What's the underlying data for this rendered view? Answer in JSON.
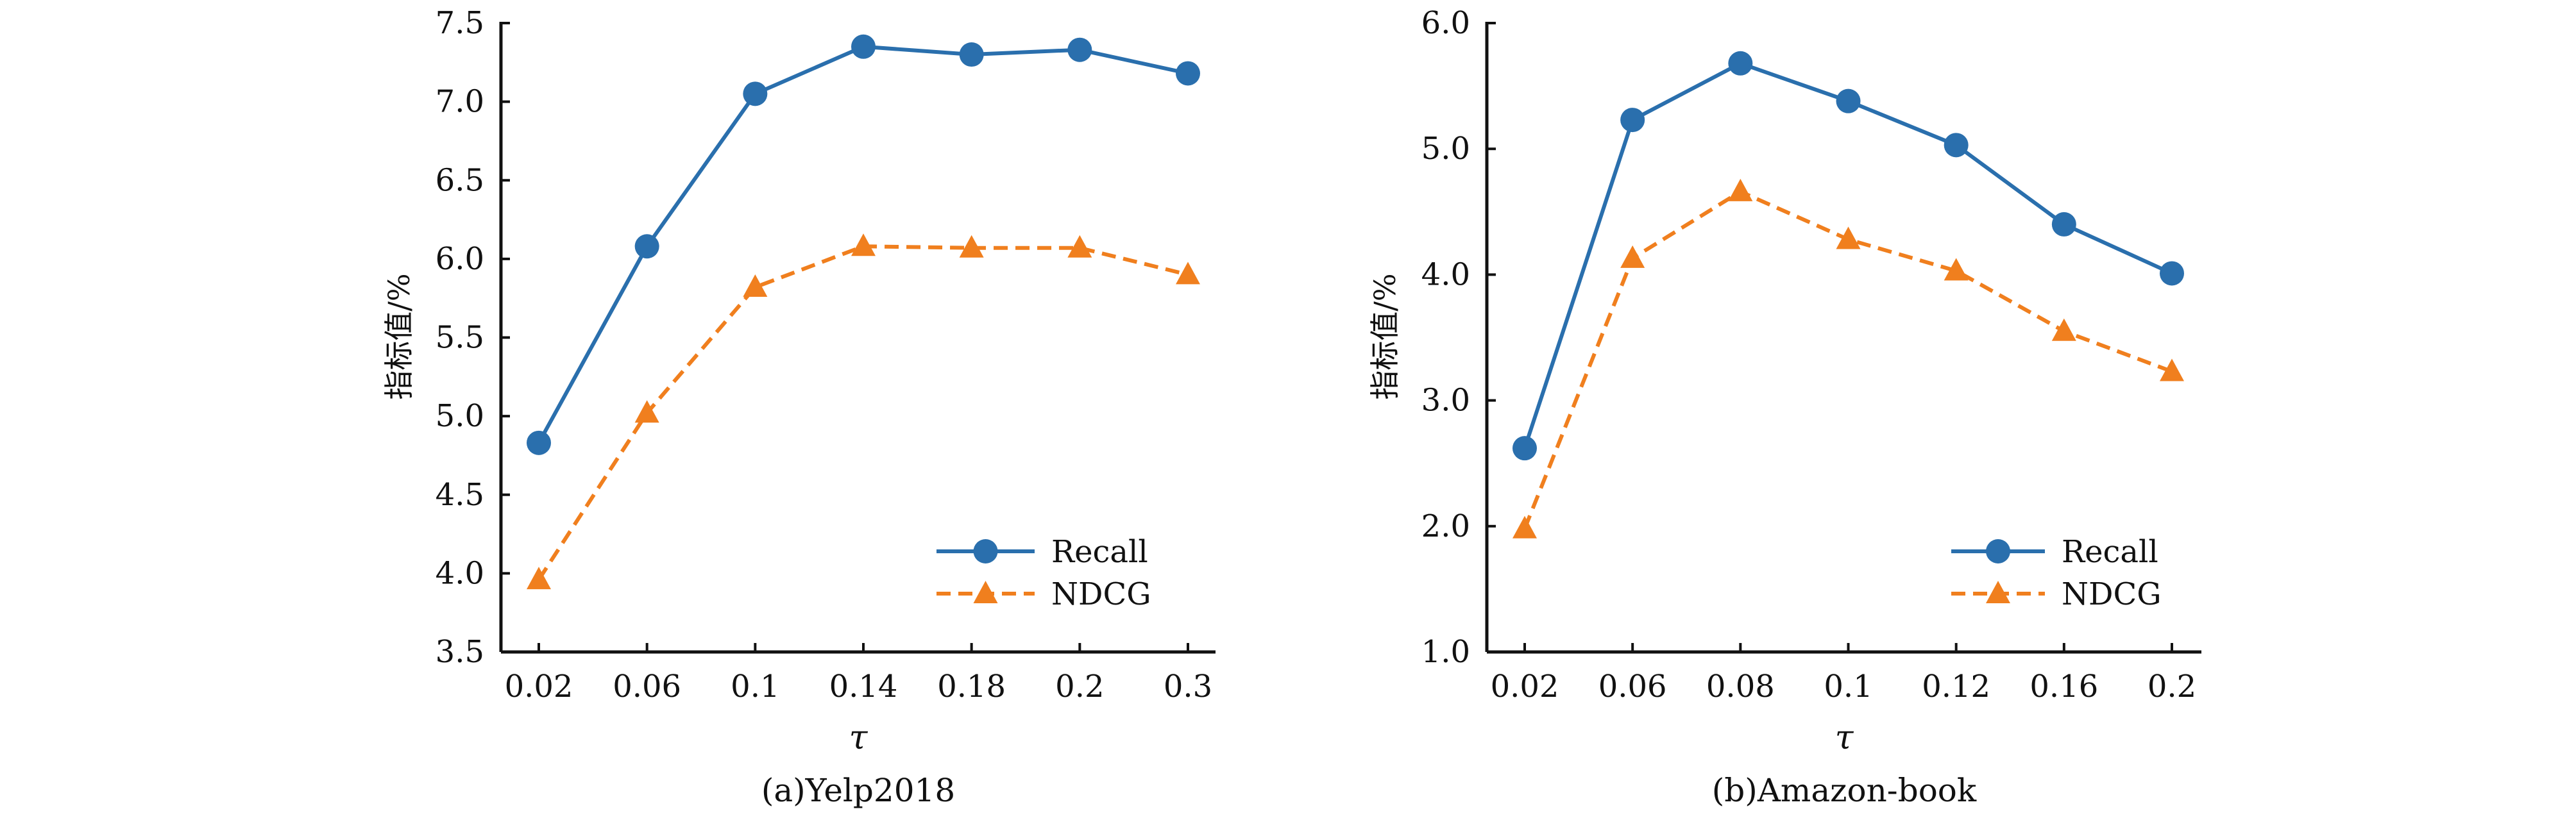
{
  "colors": {
    "recall": "#2a6fad",
    "ndcg": "#f07f1e",
    "axis": "#111111"
  },
  "chart_data": [
    {
      "type": "line",
      "title": "(a)Yelp2018",
      "xlabel": "τ",
      "ylabel": "指标值/%",
      "categories": [
        "0.02",
        "0.06",
        "0.1",
        "0.14",
        "0.18",
        "0.2",
        "0.3"
      ],
      "ylim": [
        3.5,
        7.5
      ],
      "yticks": [
        "3.5",
        "4.0",
        "4.5",
        "5.0",
        "5.5",
        "6.0",
        "6.5",
        "7.0",
        "7.5"
      ],
      "legend_position": "lower-right",
      "grid": false,
      "series": [
        {
          "name": "Recall",
          "marker": "circle",
          "style": "solid",
          "values": [
            4.83,
            6.08,
            7.05,
            7.35,
            7.3,
            7.33,
            7.18
          ]
        },
        {
          "name": "NDCG",
          "marker": "triangle",
          "style": "dashed",
          "values": [
            3.96,
            5.02,
            5.82,
            6.08,
            6.07,
            6.07,
            5.9
          ]
        }
      ]
    },
    {
      "type": "line",
      "title": "(b)Amazon-book",
      "xlabel": "τ",
      "ylabel": "指标值/%",
      "categories": [
        "0.02",
        "0.06",
        "0.08",
        "0.1",
        "0.12",
        "0.16",
        "0.2"
      ],
      "ylim": [
        1.0,
        6.0
      ],
      "yticks": [
        "1.0",
        "2.0",
        "3.0",
        "4.0",
        "5.0",
        "6.0"
      ],
      "legend_position": "lower-right",
      "grid": false,
      "series": [
        {
          "name": "Recall",
          "marker": "circle",
          "style": "solid",
          "values": [
            2.62,
            5.23,
            5.68,
            5.38,
            5.03,
            4.4,
            4.01
          ]
        },
        {
          "name": "NDCG",
          "marker": "triangle",
          "style": "dashed",
          "values": [
            1.98,
            4.13,
            4.66,
            4.28,
            4.03,
            3.55,
            3.23
          ]
        }
      ]
    }
  ]
}
